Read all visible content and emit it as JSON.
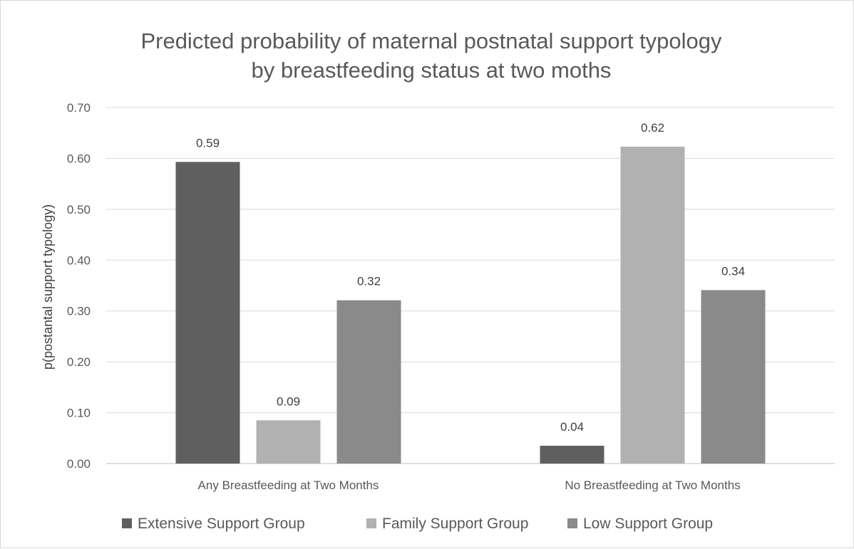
{
  "chart_data": {
    "type": "bar",
    "title_lines": [
      "Predicted probability of maternal postnatal support typology",
      "by breastfeeding status at two moths"
    ],
    "ylabel": "p(postantal support typology)",
    "xlabel": "",
    "ylim": [
      0,
      0.7
    ],
    "yticks": [
      "0.00",
      "0.10",
      "0.20",
      "0.30",
      "0.40",
      "0.50",
      "0.60",
      "0.70"
    ],
    "grid": true,
    "legend_position": "bottom",
    "categories": [
      "Any Breastfeeding at Two Months",
      "No Breastfeeding at Two Months"
    ],
    "series": [
      {
        "name": "Extensive Support Group",
        "color": "#5f5f5f",
        "values": [
          0.593,
          0.035
        ],
        "labels": [
          "0.59",
          "0.04"
        ]
      },
      {
        "name": "Family Support Group",
        "color": "#b1b1b1",
        "values": [
          0.085,
          0.623
        ],
        "labels": [
          "0.09",
          "0.62"
        ]
      },
      {
        "name": "Low Support Group",
        "color": "#8a8a8a",
        "values": [
          0.321,
          0.341
        ],
        "labels": [
          "0.32",
          "0.34"
        ]
      }
    ]
  }
}
